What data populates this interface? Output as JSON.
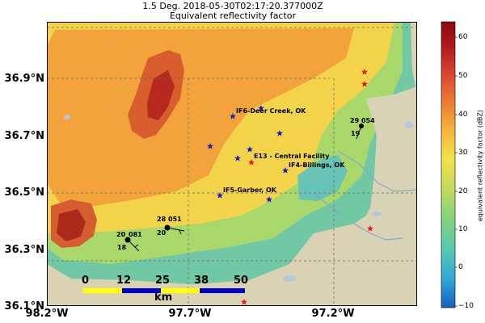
{
  "header": {
    "line1": "1.5 Deg. 2018-05-30T02:17:20.377000Z",
    "line2": "Equivalent reflectivity factor"
  },
  "axes": {
    "y_ticks": [
      "36.9°N",
      "36.7°N",
      "36.5°N",
      "36.3°N",
      "36.1°N"
    ],
    "x_ticks": [
      "98.2°W",
      "97.7°W",
      "97.2°W"
    ]
  },
  "colorbar": {
    "label": "equivalent reflectivity factor (dBZ)",
    "ticks": [
      "60",
      "50",
      "40",
      "30",
      "20",
      "10",
      "0",
      "−10"
    ],
    "colors": [
      "#1560bd",
      "#2ea8d8",
      "#54c8b0",
      "#88d47a",
      "#c4dc5a",
      "#f2e24a",
      "#f7b43a",
      "#ee7a32",
      "#d94430",
      "#b3141e",
      "#8a0a10"
    ]
  },
  "sites": [
    {
      "label": "IF6-Deer Creek, OK"
    },
    {
      "label": "E13 - Central Facility"
    },
    {
      "label": "IF4-Billings, OK"
    },
    {
      "label": "IF5-Garber, OK"
    }
  ],
  "station_obs": [
    {
      "top": "29",
      "right": "054",
      "bottom": "19"
    },
    {
      "top": "28",
      "right": "051",
      "bottom": "20"
    },
    {
      "top": "20",
      "right": "081",
      "bottom": "18"
    }
  ],
  "scale_bar": {
    "ticks": [
      "0",
      "12",
      "25",
      "38",
      "50"
    ],
    "unit": "km"
  },
  "palette": {
    "land": "#d9d3b5",
    "star_blue": "#1a1ad0",
    "star_red": "#e81818",
    "river": "#8aa6c8"
  }
}
